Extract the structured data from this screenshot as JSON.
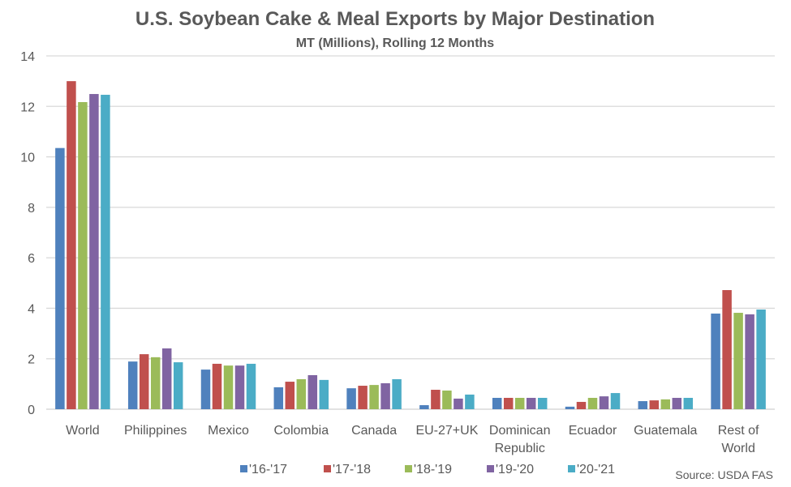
{
  "chart_data": {
    "type": "bar",
    "title": "U.S. Soybean Cake & Meal Exports by Major Destination",
    "subtitle": "MT (Millions), Rolling 12 Months",
    "xlabel": "",
    "ylabel": "",
    "ylim": [
      0,
      14
    ],
    "yticks": [
      0,
      2,
      4,
      6,
      8,
      10,
      12,
      14
    ],
    "grid": true,
    "legend_position": "bottom",
    "categories": [
      [
        "World"
      ],
      [
        "Philippines"
      ],
      [
        "Mexico"
      ],
      [
        "Colombia"
      ],
      [
        "Canada"
      ],
      [
        "EU-27+UK"
      ],
      [
        "Dominican",
        "Republic"
      ],
      [
        "Ecuador"
      ],
      [
        "Guatemala"
      ],
      [
        "Rest of",
        "World"
      ]
    ],
    "series": [
      {
        "name": "'16-'17",
        "color": "#4F81BD",
        "values": [
          10.35,
          1.89,
          1.57,
          0.87,
          0.83,
          0.16,
          0.45,
          0.1,
          0.32,
          3.79
        ]
      },
      {
        "name": "'17-'18",
        "color": "#C0504D",
        "values": [
          13.0,
          2.18,
          1.8,
          1.09,
          0.93,
          0.77,
          0.45,
          0.29,
          0.35,
          4.72
        ]
      },
      {
        "name": "'18-'19",
        "color": "#9BBB59",
        "values": [
          12.17,
          2.06,
          1.73,
          1.19,
          0.96,
          0.74,
          0.45,
          0.45,
          0.39,
          3.82
        ]
      },
      {
        "name": "'19-'20",
        "color": "#8064A2",
        "values": [
          12.49,
          2.41,
          1.73,
          1.35,
          1.03,
          0.42,
          0.45,
          0.51,
          0.45,
          3.76
        ]
      },
      {
        "name": "'20-'21",
        "color": "#4BACC6",
        "values": [
          12.46,
          1.86,
          1.8,
          1.16,
          1.19,
          0.58,
          0.45,
          0.64,
          0.45,
          3.95
        ]
      }
    ],
    "source": "Source: USDA FAS"
  }
}
